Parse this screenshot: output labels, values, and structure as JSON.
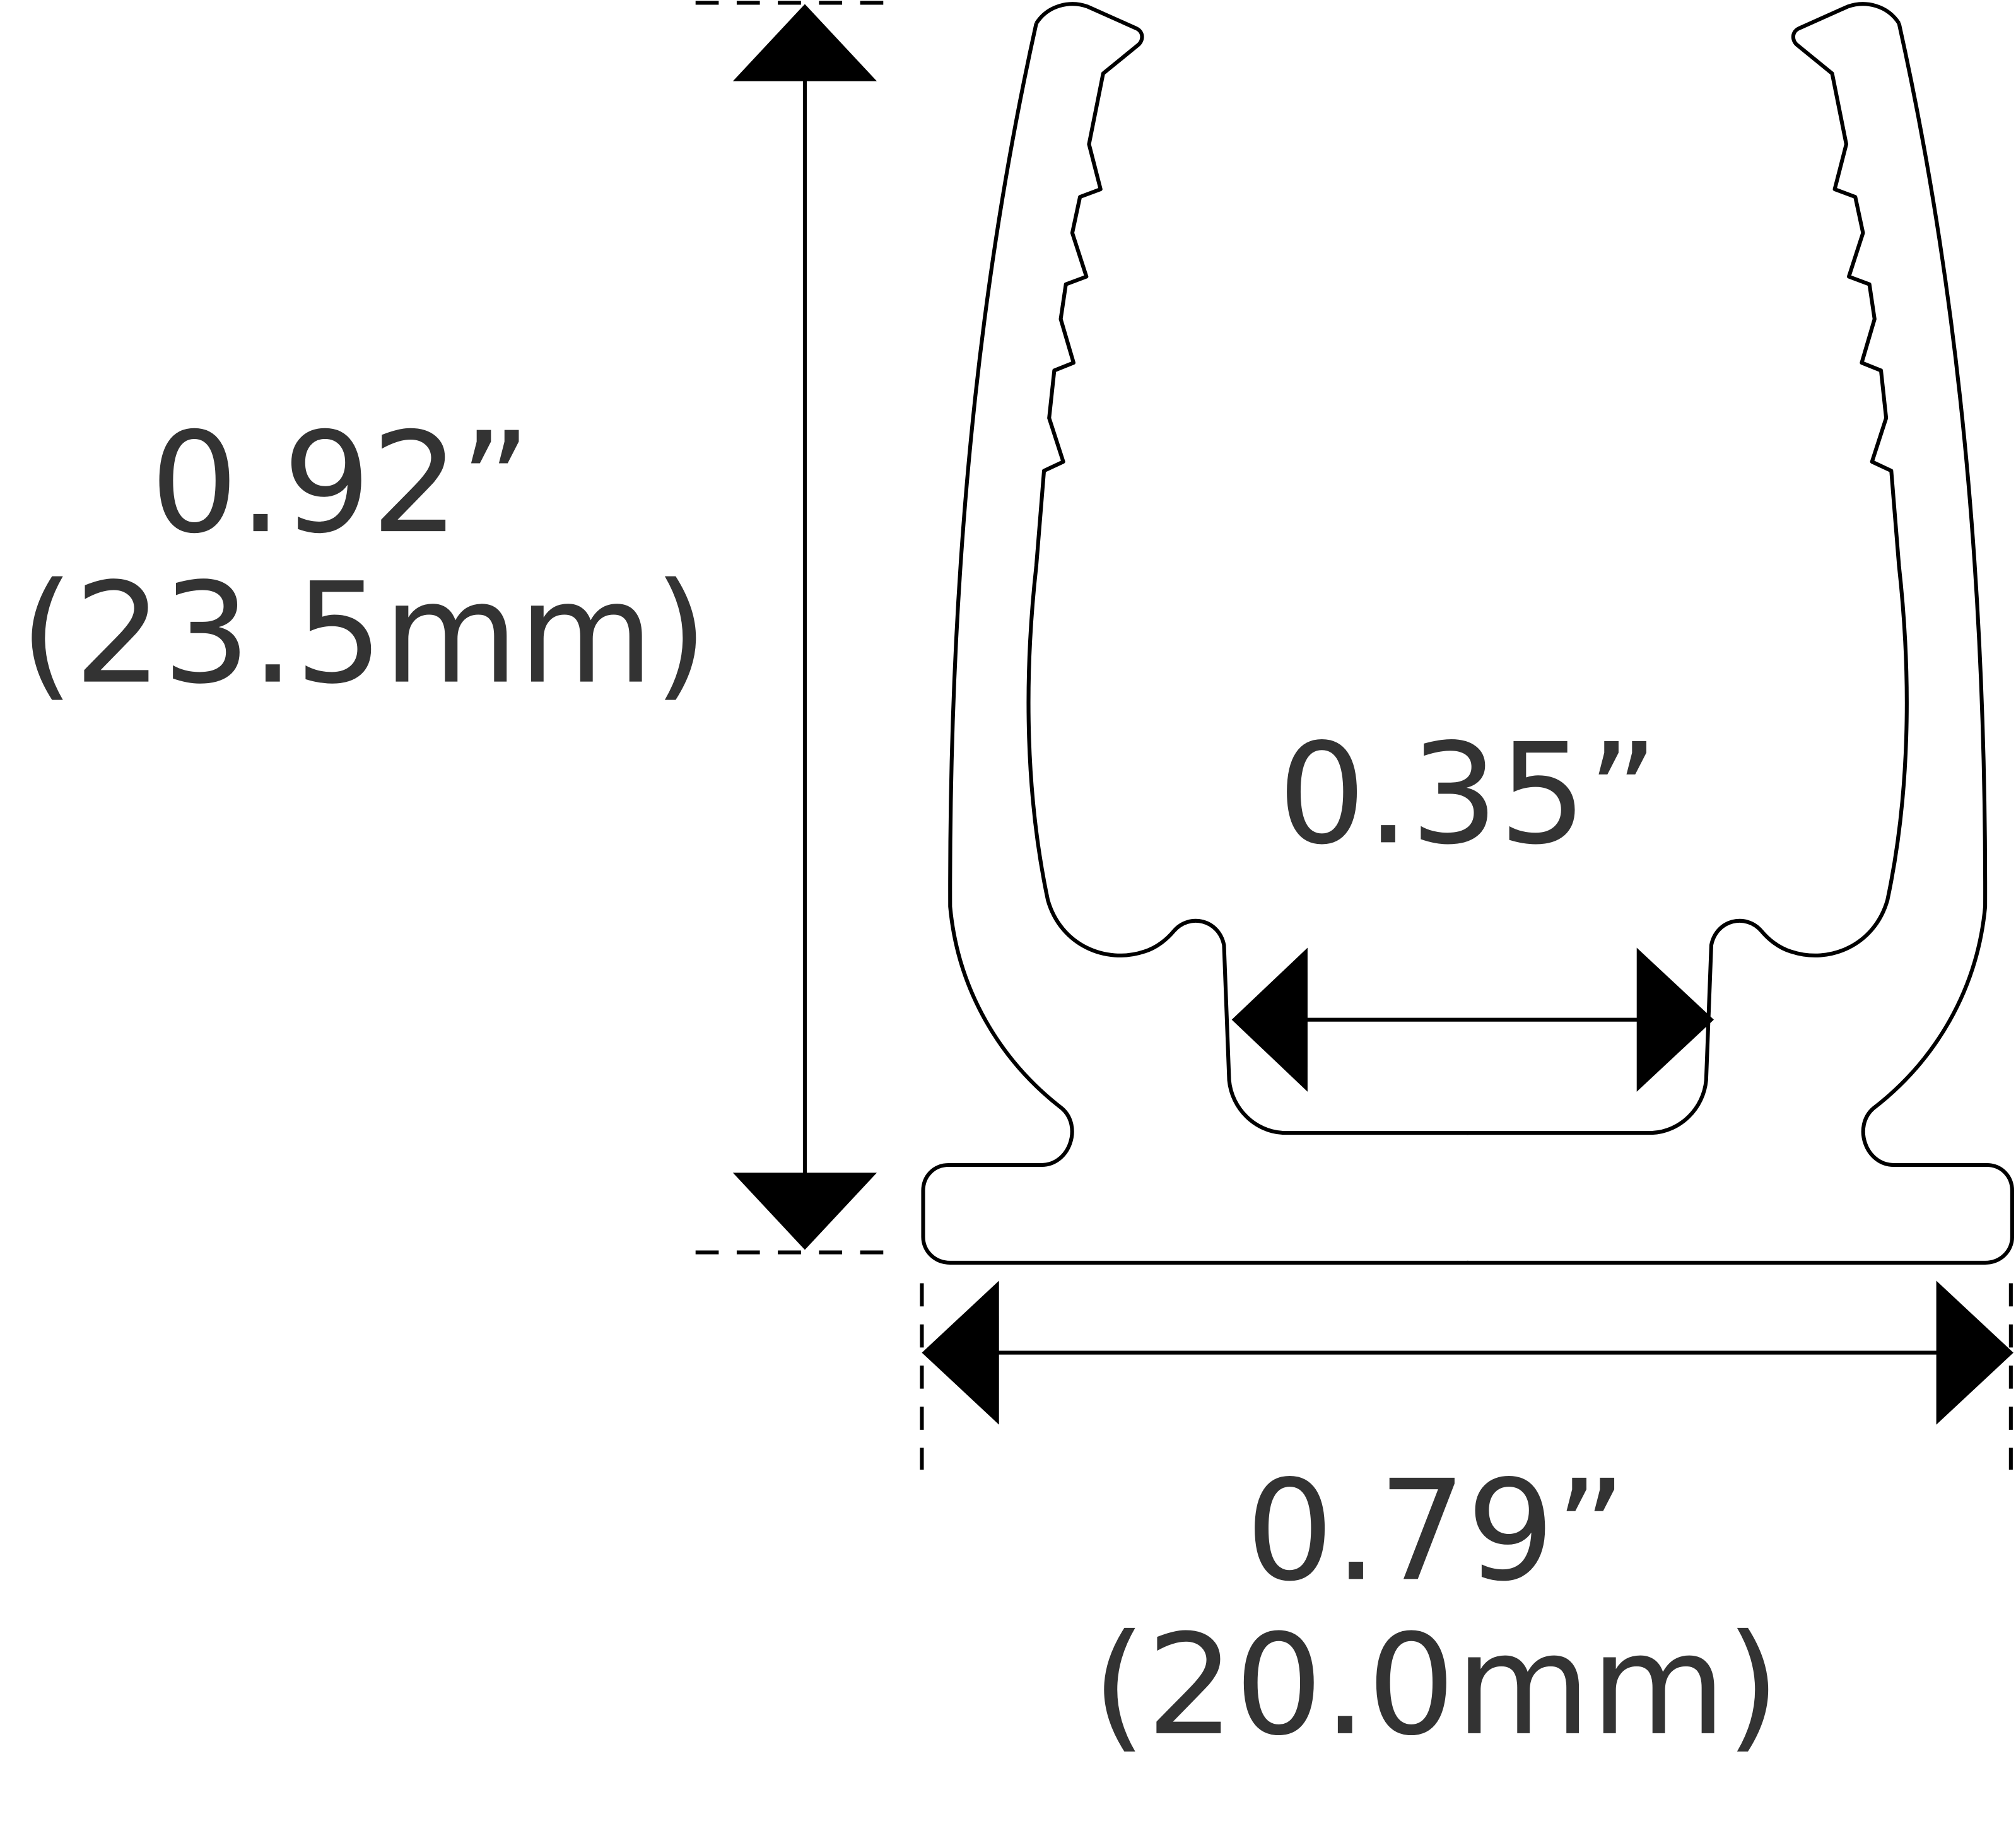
{
  "dimensions": {
    "height": {
      "inches": "0.92”",
      "mm": "(23.5mm)"
    },
    "inner_gap": {
      "inches": "0.35”"
    },
    "width": {
      "inches": "0.79”",
      "mm": "(20.0mm)"
    }
  },
  "colors": {
    "outline": "#000000",
    "text": "#333333",
    "background": "#ffffff"
  }
}
